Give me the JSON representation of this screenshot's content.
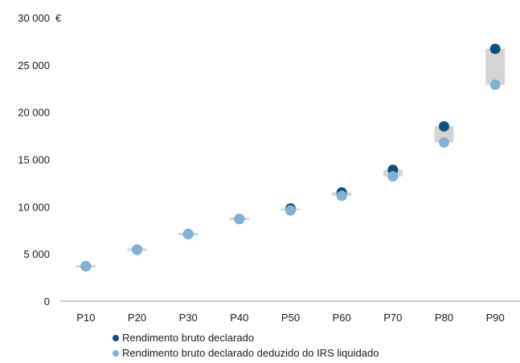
{
  "chart_data": {
    "type": "scatter",
    "categories": [
      "P10",
      "P20",
      "P30",
      "P40",
      "P50",
      "P60",
      "P70",
      "P80",
      "P90"
    ],
    "y_unit": "€",
    "ylim": [
      0,
      30000
    ],
    "yticks": [
      0,
      5000,
      10000,
      15000,
      20000,
      25000,
      30000
    ],
    "ytick_labels": [
      "0",
      "5 000",
      "10 000",
      "15 000",
      "20 000",
      "25 000",
      "30 000"
    ],
    "grid": false,
    "legend_position": "bottom",
    "series": [
      {
        "name": "Rendimento bruto declarado",
        "color": "#0b4f7d",
        "values": [
          3700,
          5450,
          7100,
          8700,
          9800,
          11500,
          13900,
          18500,
          26700
        ]
      },
      {
        "name": "Rendimento bruto declarado deduzido do IRS liquidado",
        "color": "#7fb2d6",
        "values": [
          3700,
          5450,
          7100,
          8700,
          9600,
          11150,
          13200,
          16800,
          22900
        ]
      }
    ],
    "gap_band_color": "#d4d4d4"
  }
}
